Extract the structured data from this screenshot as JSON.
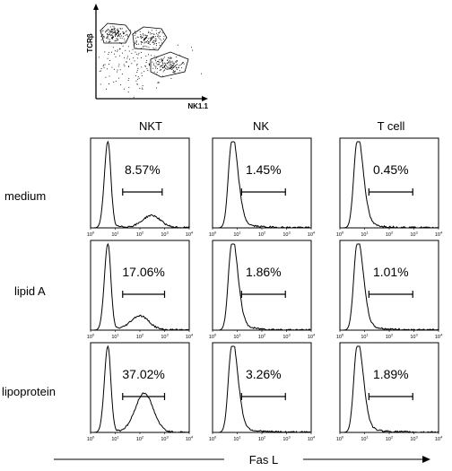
{
  "chart_data": {
    "type": "histogram-grid",
    "xlabel": "Fas L",
    "x_scale": "log",
    "xlim": [
      1,
      10000
    ],
    "x_ticks": [
      {
        "base": "10",
        "exp": "0"
      },
      {
        "base": "10",
        "exp": "1"
      },
      {
        "base": "10",
        "exp": "2"
      },
      {
        "base": "10",
        "exp": "3"
      },
      {
        "base": "10",
        "exp": "4"
      }
    ],
    "columns": [
      "NKT",
      "NK",
      "T cell"
    ],
    "rows": [
      "medium",
      "lipid A",
      "lipoprotein"
    ],
    "panels": [
      {
        "row": "medium",
        "column": "NKT",
        "percent": "8.57%",
        "gate": [
          20,
          800
        ],
        "peak": 5,
        "second_peak": 300,
        "second_height": 0.14
      },
      {
        "row": "medium",
        "column": "NK",
        "percent": "1.45%",
        "gate": [
          15,
          900
        ],
        "peak": 6,
        "second_peak": null,
        "second_height": 0
      },
      {
        "row": "medium",
        "column": "T cell",
        "percent": "0.45%",
        "gate": [
          15,
          900
        ],
        "peak": 5,
        "second_peak": null,
        "second_height": 0
      },
      {
        "row": "lipid A",
        "column": "NKT",
        "percent": "17.06%",
        "gate": [
          20,
          1000
        ],
        "peak": 5,
        "second_peak": 100,
        "second_height": 0.16
      },
      {
        "row": "lipid A",
        "column": "NK",
        "percent": "1.86%",
        "gate": [
          15,
          900
        ],
        "peak": 6,
        "second_peak": null,
        "second_height": 0
      },
      {
        "row": "lipid A",
        "column": "T cell",
        "percent": "1.01%",
        "gate": [
          15,
          900
        ],
        "peak": 5,
        "second_peak": null,
        "second_height": 0
      },
      {
        "row": "lipoprotein",
        "column": "NKT",
        "percent": "37.02%",
        "gate": [
          20,
          1000
        ],
        "peak": 5,
        "second_peak": 150,
        "second_height": 0.45
      },
      {
        "row": "lipoprotein",
        "column": "NK",
        "percent": "3.26%",
        "gate": [
          15,
          900
        ],
        "peak": 6,
        "second_peak": null,
        "second_height": 0
      },
      {
        "row": "lipoprotein",
        "column": "T cell",
        "percent": "1.89%",
        "gate": [
          15,
          900
        ],
        "peak": 5,
        "second_peak": null,
        "second_height": 0
      }
    ],
    "scatter_inset": {
      "xlabel": "NK1.1",
      "ylabel": "TCRβ"
    }
  }
}
